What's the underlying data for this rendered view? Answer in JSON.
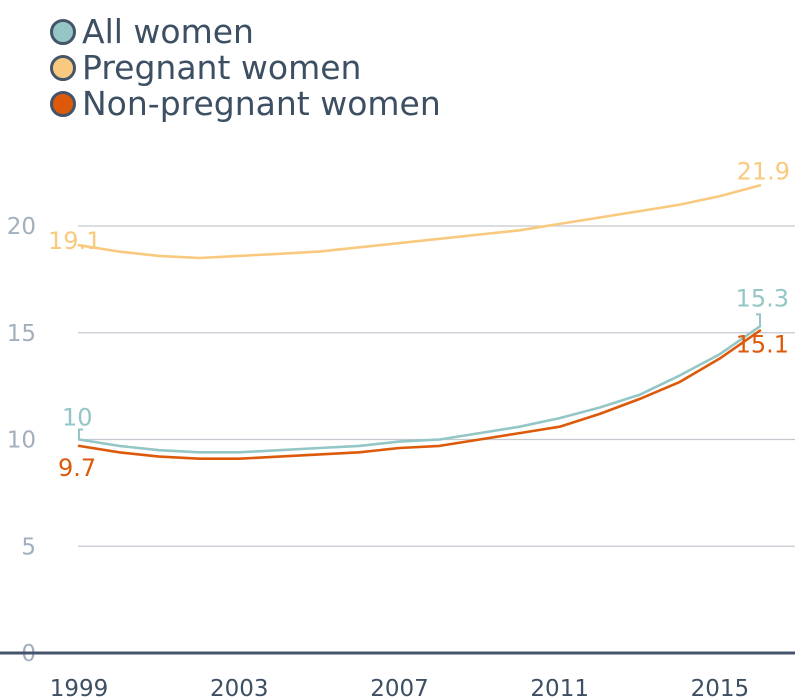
{
  "chart_data": {
    "type": "line",
    "x": [
      1999,
      2000,
      2001,
      2002,
      2003,
      2004,
      2005,
      2006,
      2007,
      2008,
      2009,
      2010,
      2011,
      2012,
      2013,
      2014,
      2015,
      2016
    ],
    "xticks": [
      "1999",
      "2003",
      "2007",
      "2011",
      "2015"
    ],
    "yticks": [
      "0",
      "5",
      "10",
      "15",
      "20"
    ],
    "ylim": [
      0,
      23
    ],
    "grid": true,
    "legend_position": "top-left",
    "series": [
      {
        "name": "All women",
        "color": "#93c6c5",
        "values": [
          10.0,
          9.7,
          9.5,
          9.4,
          9.4,
          9.5,
          9.6,
          9.7,
          9.9,
          10.0,
          10.3,
          10.6,
          11.0,
          11.5,
          12.1,
          13.0,
          14.0,
          15.3
        ],
        "start_label": "10",
        "end_label": "15.3"
      },
      {
        "name": "Pregnant women",
        "color": "#f9c97f",
        "values": [
          19.1,
          18.8,
          18.6,
          18.5,
          18.6,
          18.7,
          18.8,
          19.0,
          19.2,
          19.4,
          19.6,
          19.8,
          20.1,
          20.4,
          20.7,
          21.0,
          21.4,
          21.9
        ],
        "start_label": "19.1",
        "end_label": "21.9"
      },
      {
        "name": "Non-pregnant women",
        "color": "#dd5a0b",
        "values": [
          9.7,
          9.4,
          9.2,
          9.1,
          9.1,
          9.2,
          9.3,
          9.4,
          9.6,
          9.7,
          10.0,
          10.3,
          10.6,
          11.2,
          11.9,
          12.7,
          13.8,
          15.1
        ],
        "start_label": "9.7",
        "end_label": "15.1"
      }
    ]
  }
}
